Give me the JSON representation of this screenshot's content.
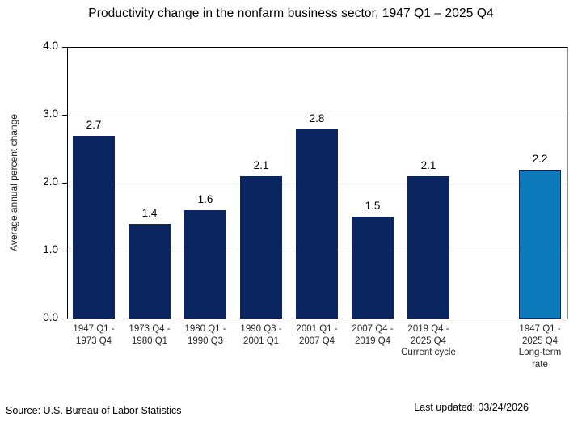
{
  "title": "Productivity change in the nonfarm business sector, 1947 Q1 – 2025 Q4",
  "y_axis": {
    "label": "Average annual percent change",
    "ticks": [
      "0.0",
      "1.0",
      "2.0",
      "3.0",
      "4.0"
    ],
    "min": 0,
    "max": 4
  },
  "footer": {
    "source": "Source: U.S. Bureau of Labor Statistics",
    "last_updated": "Last updated: 03/24/2026"
  },
  "colors": {
    "bar": "#0b2560",
    "highlight_bar": "#0d7abc",
    "gridline": "#d9d9d9"
  },
  "chart_data": {
    "type": "bar",
    "title": "Productivity change in the nonfarm business sector, 1947 Q1 – 2025 Q4",
    "xlabel": "",
    "ylabel": "Average annual percent change",
    "ylim": [
      0,
      4
    ],
    "grid": "horizontal-dotted",
    "legend": "none",
    "bars": [
      {
        "label_lines": [
          "1947 Q1 -",
          "1973 Q4"
        ],
        "value": 2.7,
        "value_label": "2.7",
        "slot": 0,
        "color": "navy"
      },
      {
        "label_lines": [
          "1973 Q4 -",
          "1980 Q1"
        ],
        "value": 1.4,
        "value_label": "1.4",
        "slot": 1,
        "color": "navy"
      },
      {
        "label_lines": [
          "1980 Q1 -",
          "1990 Q3"
        ],
        "value": 1.6,
        "value_label": "1.6",
        "slot": 2,
        "color": "navy"
      },
      {
        "label_lines": [
          "1990 Q3 -",
          "2001 Q1"
        ],
        "value": 2.1,
        "value_label": "2.1",
        "slot": 3,
        "color": "navy"
      },
      {
        "label_lines": [
          "2001 Q1 -",
          "2007 Q4"
        ],
        "value": 2.8,
        "value_label": "2.8",
        "slot": 4,
        "color": "navy"
      },
      {
        "label_lines": [
          "2007 Q4 -",
          "2019 Q4"
        ],
        "value": 1.5,
        "value_label": "1.5",
        "slot": 5,
        "color": "navy"
      },
      {
        "label_lines": [
          "2019 Q4 -",
          "2025 Q4",
          "Current cycle"
        ],
        "value": 2.1,
        "value_label": "2.1",
        "slot": 6,
        "color": "navy"
      },
      {
        "label_lines": [
          "1947 Q1 -",
          "2025 Q4",
          "Long-term",
          "rate"
        ],
        "value": 2.2,
        "value_label": "2.2",
        "slot": 8,
        "color": "highlight"
      }
    ]
  }
}
